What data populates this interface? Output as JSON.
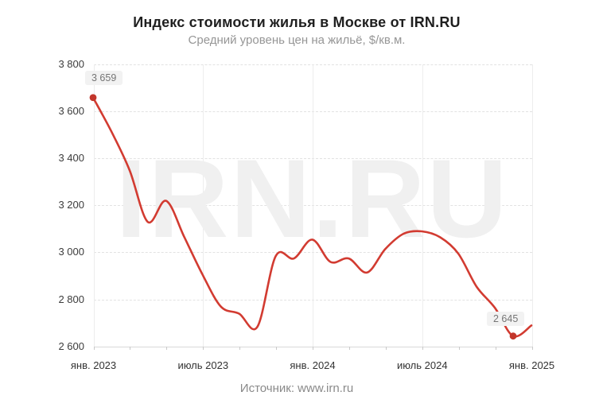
{
  "header": {
    "title": "Индекс стоимости жилья в Москве от IRN.RU",
    "subtitle": "Средний уровень цен на жильё, $/кв.м."
  },
  "watermark": "IRN.RU",
  "footer": {
    "source": "Источник: www.irn.ru"
  },
  "colors": {
    "line": "#d23b31",
    "dot": "#c2362b",
    "watermark": "#f0f0f0",
    "label_box_bg": "#f2f2f2",
    "label_box_text": "#757575"
  },
  "chart_data": {
    "type": "line",
    "title": "Индекс стоимости жилья в Москве от IRN.RU",
    "subtitle": "Средний уровень цен на жильё, $/кв.м.",
    "xlabel": "",
    "ylabel": "$/кв.м.",
    "ylim": [
      2600,
      3800
    ],
    "grid": true,
    "legend": false,
    "x": [
      "2023-01",
      "2023-02",
      "2023-03",
      "2023-04",
      "2023-05",
      "2023-06",
      "2023-07",
      "2023-08",
      "2023-09",
      "2023-10",
      "2023-11",
      "2023-12",
      "2024-01",
      "2024-02",
      "2024-03",
      "2024-04",
      "2024-05",
      "2024-06",
      "2024-07",
      "2024-08",
      "2024-09",
      "2024-10",
      "2024-11",
      "2024-12",
      "2025-01"
    ],
    "values": [
      3659,
      3515,
      3350,
      3130,
      3220,
      3065,
      2905,
      2770,
      2740,
      2685,
      2985,
      2975,
      3055,
      2960,
      2975,
      2915,
      3015,
      3080,
      3090,
      3065,
      2995,
      2855,
      2765,
      2645,
      2690
    ],
    "y_tick_labels": [
      "3 800",
      "3 600",
      "3 400",
      "3 200",
      "3 000",
      "2 800",
      "2 600"
    ],
    "x_tick_labels": [
      "янв. 2023",
      "июль 2023",
      "янв. 2024",
      "июль 2024",
      "янв. 2025"
    ],
    "annotations": [
      {
        "month": "2023-01",
        "month_index": 0,
        "value": 3659,
        "label": "3 659"
      },
      {
        "month": "2024-12",
        "month_index": 23,
        "value": 2645,
        "label": "2 645"
      }
    ]
  }
}
